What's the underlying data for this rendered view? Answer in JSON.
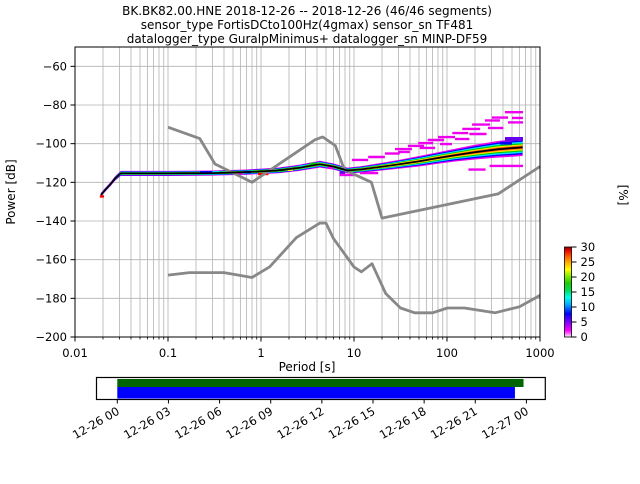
{
  "title": {
    "line1": "BK.BK82.00.HNE   2018-12-26 -- 2018-12-26  (46/46 segments)",
    "line2": "sensor_type FortisDCto100Hz(4gmax) sensor_sn TF481",
    "line3": "datalogger_type GuralpMinimus+ datalogger_sn MINP-DF59"
  },
  "axes": {
    "xlabel": "Period [s]",
    "ylabel": "Power [dB]",
    "right_label": "[%]",
    "x_tick_labels": [
      "0.01",
      "0.1",
      "1",
      "10",
      "100",
      "1000"
    ],
    "x_tick_values": [
      0.01,
      0.1,
      1,
      10,
      100,
      1000
    ],
    "y_tick_labels": [
      "−60",
      "−80",
      "−100",
      "−120",
      "−140",
      "−160",
      "−180",
      "−200"
    ],
    "y_tick_values": [
      -60,
      -80,
      -100,
      -120,
      -140,
      -160,
      -180,
      -200
    ],
    "xlim": [
      0.01,
      1000
    ],
    "ylim": [
      -200,
      -50
    ],
    "grid_color": "#b2b2b2"
  },
  "colorbar": {
    "tick_labels": [
      "30",
      "25",
      "20",
      "15",
      "10",
      "5",
      "0"
    ],
    "tick_values": [
      30,
      25,
      20,
      15,
      10,
      5,
      0
    ],
    "min": 0,
    "max": 30,
    "label": "[%]",
    "stops": [
      [
        0.0,
        "#ffffff"
      ],
      [
        0.02,
        "#ffaaff"
      ],
      [
        0.07,
        "#ff00ff"
      ],
      [
        0.17,
        "#7700ff"
      ],
      [
        0.26,
        "#0000ff"
      ],
      [
        0.36,
        "#00aaff"
      ],
      [
        0.44,
        "#00ffee"
      ],
      [
        0.52,
        "#00dd55"
      ],
      [
        0.6,
        "#22cc00"
      ],
      [
        0.68,
        "#88ee00"
      ],
      [
        0.75,
        "#ffff00"
      ],
      [
        0.83,
        "#ffaa00"
      ],
      [
        0.9,
        "#ff5500"
      ],
      [
        0.96,
        "#ee0000"
      ],
      [
        1.0,
        "#880000"
      ]
    ]
  },
  "chart_data": {
    "type": "line",
    "title": "BK.BK82.00.HNE PPSD",
    "xlabel": "Period [s]",
    "ylabel": "Power [dB]",
    "xscale": "log",
    "xlim": [
      0.01,
      1000
    ],
    "ylim": [
      -200,
      -50
    ],
    "grid": true,
    "legend_position": "none",
    "series": [
      {
        "name": "noise-model-low-NLNM",
        "color": "#888888",
        "points": [
          [
            0.1,
            -168.0
          ],
          [
            0.17,
            -166.7
          ],
          [
            0.4,
            -166.7
          ],
          [
            0.8,
            -169.2
          ],
          [
            1.24,
            -163.7
          ],
          [
            2.4,
            -148.6
          ],
          [
            4.3,
            -141.1
          ],
          [
            5,
            -141.1
          ],
          [
            6,
            -149.0
          ],
          [
            10,
            -163.8
          ],
          [
            12,
            -166.3
          ],
          [
            15.6,
            -162.1
          ],
          [
            21.9,
            -177.5
          ],
          [
            31.6,
            -185.0
          ],
          [
            45,
            -187.5
          ],
          [
            70,
            -187.5
          ],
          [
            101,
            -185.0
          ],
          [
            154,
            -185.0
          ],
          [
            328,
            -187.5
          ],
          [
            600,
            -184.4
          ],
          [
            1000,
            -178.5
          ]
        ]
      },
      {
        "name": "noise-model-high-NHNM",
        "color": "#888888",
        "points": [
          [
            0.1,
            -91.5
          ],
          [
            0.22,
            -97.4
          ],
          [
            0.32,
            -110.5
          ],
          [
            0.8,
            -120.0
          ],
          [
            3.8,
            -98.0
          ],
          [
            4.6,
            -96.5
          ],
          [
            6.3,
            -101.0
          ],
          [
            7.9,
            -113.5
          ],
          [
            15.4,
            -120.0
          ],
          [
            20,
            -138.5
          ],
          [
            354.8,
            -126.0
          ],
          [
            1000,
            -111.8
          ]
        ]
      },
      {
        "name": "psd-mode-line",
        "color": "#000000",
        "points": [
          [
            0.019,
            -126.5
          ],
          [
            0.021,
            -124.0
          ],
          [
            0.024,
            -121.0
          ],
          [
            0.027,
            -118.0
          ],
          [
            0.031,
            -115.4
          ],
          [
            0.05,
            -115.4
          ],
          [
            0.1,
            -115.4
          ],
          [
            0.3,
            -115.2
          ],
          [
            0.7,
            -114.7
          ],
          [
            1.5,
            -113.9
          ],
          [
            2.5,
            -112.6
          ],
          [
            4.3,
            -110.6
          ],
          [
            6,
            -111.8
          ],
          [
            8.5,
            -113.9
          ],
          [
            12,
            -113.3
          ],
          [
            20,
            -111.9
          ],
          [
            31,
            -110.6
          ],
          [
            50,
            -109.1
          ],
          [
            80,
            -107.4
          ],
          [
            120,
            -106.0
          ],
          [
            200,
            -104.4
          ],
          [
            350,
            -102.9
          ],
          [
            500,
            -102.3
          ],
          [
            650,
            -101.9
          ]
        ]
      }
    ],
    "band": {
      "halfwidth_db": [
        1.0,
        1.0,
        1.0,
        1.1,
        1.3,
        1.3,
        1.3,
        1.3,
        1.35,
        1.5,
        1.6,
        1.8,
        1.6,
        1.5,
        1.7,
        2.0,
        2.3,
        2.7,
        3.0,
        3.3,
        3.8,
        4.3,
        4.5,
        4.5
      ],
      "layers": [
        [
          "#ee00ee",
          1.0
        ],
        [
          "#0000ff",
          0.8
        ],
        [
          "#00e5ff",
          0.64
        ],
        [
          "#00cc00",
          0.48
        ],
        [
          "#ffee00",
          0.34
        ],
        [
          "#ff8800",
          0.23
        ],
        [
          "#ee1100",
          0.14
        ]
      ]
    },
    "outlier_dashes": [
      [
        "#ee00ee",
        9.5,
        14.2,
        -108.4
      ],
      [
        "#ee00ee",
        14.2,
        21.5,
        -106.9
      ],
      [
        "#ee00ee",
        21.5,
        31,
        -105.1
      ],
      [
        "#ee00ee",
        27.6,
        42,
        -102.8
      ],
      [
        "#ee00ee",
        38,
        56.5,
        -101.2
      ],
      [
        "#ee00ee",
        49,
        71,
        -99.7
      ],
      [
        "#ee00ee",
        62,
        93,
        -98.1
      ],
      [
        "#ee00ee",
        80,
        122,
        -96.6
      ],
      [
        "#ee00ee",
        114,
        169,
        -94.5
      ],
      [
        "#ee00ee",
        146,
        227,
        -92.4
      ],
      [
        "#ee00ee",
        186,
        291,
        -90.1
      ],
      [
        "#ee00ee",
        256,
        371,
        -88.0
      ],
      [
        "#ee00ee",
        304,
        453,
        -86.5
      ],
      [
        "#ee00ee",
        420,
        656,
        -83.7
      ],
      [
        "#ee00ee",
        29.7,
        39.8,
        -104.3
      ],
      [
        "#ee00ee",
        51,
        74.5,
        -102.2
      ],
      [
        "#ee00ee",
        84,
        113,
        -100.2
      ],
      [
        "#ee00ee",
        122,
        174,
        -97.6
      ],
      [
        "#ee00ee",
        174,
        266,
        -95.0
      ],
      [
        "#ee00ee",
        276,
        404,
        -91.9
      ],
      [
        "#ee00ee",
        453,
        656,
        -89.0
      ],
      [
        "#ee00ee",
        500,
        656,
        -86.7
      ],
      [
        "#ee00ee",
        7.0,
        10.2,
        -116.2
      ],
      [
        "#ee00ee",
        170,
        260,
        -113.4
      ],
      [
        "#ee00ee",
        287,
        656,
        -111.5
      ],
      [
        "#6600ee",
        420,
        656,
        -97.6,
        4
      ],
      [
        "#0000ff",
        371,
        500,
        -99.7,
        3
      ],
      [
        "#ff0000",
        0.0185,
        0.0205,
        -127.3
      ],
      [
        "#0000ff",
        0.22,
        0.3,
        -114.8
      ],
      [
        "#00e5ff",
        0.3,
        0.36,
        -114.8
      ],
      [
        "#ee00ee",
        0.55,
        0.63,
        -115.2
      ],
      [
        "#0000ff",
        0.65,
        0.78,
        -114.7
      ],
      [
        "#ff0000",
        0.93,
        1.2,
        -115.7
      ],
      [
        "#00cc00",
        1.6,
        1.8,
        -113.9
      ],
      [
        "#ffee00",
        1.95,
        2.2,
        -113.5
      ],
      [
        "#00e5ff",
        2.6,
        3.0,
        -111.8
      ],
      [
        "#00cc00",
        3.4,
        4.0,
        -110.4
      ],
      [
        "#ee00ee",
        5.2,
        6.0,
        -112.5
      ],
      [
        "#6600ee",
        7.0,
        8.0,
        -115.0
      ],
      [
        "#ee00ee",
        11.6,
        18.2,
        -115.2
      ]
    ]
  },
  "timeline": {
    "tick_labels": [
      "12-26 00",
      "12-26 03",
      "12-26 06",
      "12-26 09",
      "12-26 12",
      "12-26 15",
      "12-26 18",
      "12-26 21",
      "12-27 00"
    ],
    "bars": [
      {
        "name": "coverage-data",
        "color": "#006400",
        "start": 0.0,
        "end": 0.993
      },
      {
        "name": "coverage-used",
        "color": "#0000ff",
        "start": 0.0,
        "end": 0.972
      }
    ]
  }
}
